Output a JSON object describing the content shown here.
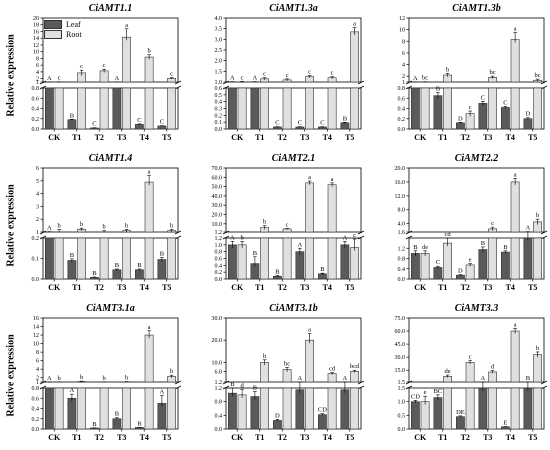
{
  "colors": {
    "leaf": "#5a5a5a",
    "root": "#e0e0e0"
  },
  "legend": [
    {
      "name": "Leaf",
      "color": "#5a5a5a"
    },
    {
      "name": "Root",
      "color": "#e0e0e0"
    }
  ],
  "ylabel": "Relative expression",
  "categories": [
    "CK",
    "T1",
    "T2",
    "T3",
    "T4",
    "T5"
  ],
  "chart_data": [
    {
      "type": "bar",
      "title": "CiAMT1.1",
      "ylabel": "Relative expression",
      "categories": [
        "CK",
        "T1",
        "T2",
        "T3",
        "T4",
        "T5"
      ],
      "upper_ticks": [
        1,
        2,
        4,
        6,
        8,
        10,
        12,
        14,
        16,
        18,
        20
      ],
      "upper_ylim": [
        1,
        20
      ],
      "lower_ticks": [
        0.0,
        0.2,
        0.4,
        0.6,
        0.8
      ],
      "lower_ylim": [
        0,
        0.8
      ],
      "series": [
        {
          "name": "Leaf",
          "values": [
            1.0,
            0.18,
            0.02,
            1.0,
            0.09,
            0.06
          ],
          "errors": [
            0.05,
            0.01,
            0.005,
            0.05,
            0.01,
            0.005
          ],
          "letters": [
            "A",
            "B",
            "C",
            "A",
            "C",
            "C"
          ]
        },
        {
          "name": "Root",
          "values": [
            1.0,
            3.7,
            4.3,
            14.3,
            8.4,
            2.1
          ],
          "errors": [
            0.08,
            0.8,
            0.5,
            2.5,
            0.7,
            0.2
          ],
          "letters": [
            "c",
            "c",
            "c",
            "a",
            "b",
            "c"
          ]
        }
      ]
    },
    {
      "type": "bar",
      "title": "CiAMT1.3a",
      "ylabel": "",
      "categories": [
        "CK",
        "T1",
        "T2",
        "T3",
        "T4",
        "T5"
      ],
      "upper_ticks": [
        1.0,
        1.5,
        2.0,
        2.5,
        3.0,
        3.5,
        4.0
      ],
      "upper_ylim": [
        1.0,
        4.0
      ],
      "lower_ticks": [
        0.0,
        0.1,
        0.2,
        0.3,
        0.4,
        0.5,
        0.6
      ],
      "lower_ylim": [
        0,
        0.6
      ],
      "series": [
        {
          "name": "Leaf",
          "values": [
            1.0,
            1.0,
            0.03,
            0.03,
            0.03,
            0.09
          ],
          "errors": [
            0.02,
            0.02,
            0.004,
            0.004,
            0.004,
            0.008
          ],
          "letters": [
            "A",
            "A",
            "C",
            "C",
            "C",
            "B"
          ]
        },
        {
          "name": "Root",
          "values": [
            1.0,
            1.15,
            1.1,
            1.25,
            1.2,
            3.35
          ],
          "errors": [
            0.03,
            0.05,
            0.05,
            0.05,
            0.05,
            0.2
          ],
          "letters": [
            "c",
            "c",
            "c",
            "c",
            "c",
            "a"
          ]
        }
      ]
    },
    {
      "type": "bar",
      "title": "CiAMT1.3b",
      "ylabel": "",
      "categories": [
        "CK",
        "T1",
        "T2",
        "T3",
        "T4",
        "T5"
      ],
      "upper_ticks": [
        1.0,
        2.0,
        4.0,
        6.0,
        8.0,
        10.0,
        12.0
      ],
      "upper_ylim": [
        1.0,
        12.0
      ],
      "lower_ticks": [
        0.0,
        0.2,
        0.4,
        0.6,
        0.8
      ],
      "lower_ylim": [
        0,
        0.8
      ],
      "series": [
        {
          "name": "Leaf",
          "values": [
            1.0,
            0.65,
            0.12,
            0.5,
            0.42,
            0.2
          ],
          "errors": [
            0.03,
            0.06,
            0.01,
            0.04,
            0.02,
            0.02
          ],
          "letters": [
            "A",
            "B",
            "D",
            "C",
            "C",
            "D"
          ]
        },
        {
          "name": "Root",
          "values": [
            1.0,
            2.2,
            0.3,
            1.8,
            8.3,
            1.3
          ],
          "errors": [
            0.05,
            0.3,
            0.05,
            0.2,
            1.2,
            0.2
          ],
          "letters": [
            "bc",
            "b",
            "c",
            "bc",
            "a",
            "bc"
          ]
        }
      ]
    },
    {
      "type": "bar",
      "title": "CiAMT1.4",
      "ylabel": "Relative expression",
      "categories": [
        "CK",
        "T1",
        "T2",
        "T3",
        "T4",
        "T5"
      ],
      "upper_ticks": [
        1.0,
        2.0,
        3.0,
        4.0,
        5.0,
        6.0
      ],
      "upper_ylim": [
        1.0,
        6.0
      ],
      "lower_ticks": [
        0.0,
        0.1,
        0.2
      ],
      "lower_ylim": [
        0,
        0.2
      ],
      "series": [
        {
          "name": "Leaf",
          "values": [
            1.0,
            0.09,
            0.008,
            0.045,
            0.045,
            0.095
          ],
          "errors": [
            0.03,
            0.008,
            0.002,
            0.004,
            0.004,
            0.01
          ],
          "letters": [
            "A",
            "B",
            "B",
            "B",
            "B",
            "B"
          ]
        },
        {
          "name": "Root",
          "values": [
            1.0,
            1.2,
            1.0,
            1.1,
            4.9,
            1.1
          ],
          "errors": [
            0.2,
            0.1,
            0.1,
            0.1,
            0.5,
            0.1
          ],
          "letters": [
            "b",
            "b",
            "b",
            "b",
            "a",
            "b"
          ]
        }
      ]
    },
    {
      "type": "bar",
      "title": "CiAMT2.1",
      "ylabel": "",
      "categories": [
        "CK",
        "T1",
        "T2",
        "T3",
        "T4",
        "T5"
      ],
      "upper_ticks": [
        1.2,
        10.0,
        20.0,
        30.0,
        40.0,
        50.0,
        60.0,
        70.0
      ],
      "upper_ylim": [
        1.2,
        70.0
      ],
      "lower_ticks": [
        0.0,
        0.2,
        0.4,
        0.6,
        0.8,
        1.0,
        1.2
      ],
      "lower_ylim": [
        0,
        1.2
      ],
      "series": [
        {
          "name": "Leaf",
          "values": [
            1.0,
            0.45,
            0.08,
            0.8,
            0.15,
            1.0
          ],
          "errors": [
            0.1,
            0.2,
            0.02,
            0.1,
            0.02,
            0.1
          ],
          "letters": [
            "A",
            "B",
            "B",
            "A",
            "B",
            "A"
          ]
        },
        {
          "name": "Root",
          "values": [
            1.0,
            6.0,
            4.5,
            54.0,
            52.0,
            0.92
          ],
          "errors": [
            0.1,
            2.0,
            0.5,
            2.0,
            2.0,
            0.25
          ],
          "letters": [
            "b",
            "b",
            "c",
            "a",
            "a",
            "c"
          ]
        }
      ]
    },
    {
      "type": "bar",
      "title": "CiAMT2.2",
      "ylabel": "",
      "categories": [
        "CK",
        "T1",
        "T2",
        "T3",
        "T4",
        "T5"
      ],
      "upper_ticks": [
        1.6,
        4.0,
        8.0,
        12.0,
        16.0,
        20.0
      ],
      "upper_ylim": [
        1.6,
        20.0
      ],
      "lower_ticks": [
        0.0,
        0.4,
        0.8,
        1.2
      ],
      "lower_ylim": [
        0,
        1.6
      ],
      "series": [
        {
          "name": "Leaf",
          "values": [
            1.0,
            0.45,
            0.15,
            1.15,
            1.05,
            1.6
          ],
          "errors": [
            0.1,
            0.05,
            0.02,
            0.1,
            0.05,
            0.1
          ],
          "letters": [
            "B",
            "C",
            "D",
            "B",
            "B",
            "A"
          ]
        },
        {
          "name": "Root",
          "values": [
            1.0,
            1.4,
            0.55,
            2.5,
            16.0,
            4.5
          ],
          "errors": [
            0.1,
            0.2,
            0.05,
            0.5,
            1.0,
            0.8
          ],
          "letters": [
            "de",
            "cd",
            "e",
            "c",
            "a",
            "b"
          ]
        }
      ]
    },
    {
      "type": "bar",
      "title": "CiAMT3.1a",
      "ylabel": "Relative expression",
      "categories": [
        "CK",
        "T1",
        "T2",
        "T3",
        "T4",
        "T5"
      ],
      "upper_ticks": [
        1.0,
        2.0,
        4.0,
        6.0,
        8.0,
        10.0,
        12.0,
        14.0,
        16.0
      ],
      "upper_ylim": [
        1.0,
        16.0
      ],
      "lower_ticks": [
        0.0,
        0.2,
        0.4,
        0.6,
        0.8
      ],
      "lower_ylim": [
        0,
        0.8
      ],
      "series": [
        {
          "name": "Leaf",
          "values": [
            1.0,
            0.6,
            0.02,
            0.2,
            0.03,
            0.5
          ],
          "errors": [
            0.03,
            0.08,
            0.003,
            0.02,
            0.003,
            0.15
          ],
          "letters": [
            "A",
            "A",
            "B",
            "B",
            "B",
            "A"
          ]
        },
        {
          "name": "Root",
          "values": [
            1.0,
            1.1,
            1.0,
            1.05,
            12.0,
            2.3
          ],
          "errors": [
            0.05,
            0.1,
            0.05,
            0.05,
            1.0,
            0.3
          ],
          "letters": [
            "b",
            "b",
            "b",
            "b",
            "a",
            "b"
          ]
        }
      ]
    },
    {
      "type": "bar",
      "title": "CiAMT3.1b",
      "ylabel": "",
      "categories": [
        "CK",
        "T1",
        "T2",
        "T3",
        "T4",
        "T5"
      ],
      "upper_ticks": [
        1.2,
        6.0,
        10.0,
        20.0,
        30.0
      ],
      "upper_ylim": [
        1.2,
        30.0
      ],
      "lower_ticks": [
        0.0,
        0.4,
        0.8,
        1.2
      ],
      "lower_ylim": [
        0,
        1.2
      ],
      "series": [
        {
          "name": "Leaf",
          "values": [
            1.05,
            0.95,
            0.25,
            1.15,
            0.42,
            1.15
          ],
          "errors": [
            0.15,
            0.15,
            0.03,
            0.1,
            0.03,
            0.1
          ],
          "letters": [
            "B",
            "B",
            "D",
            "A",
            "CD",
            "A"
          ]
        },
        {
          "name": "Root",
          "values": [
            1.0,
            10.0,
            6.8,
            20.0,
            5.0,
            6.0
          ],
          "errors": [
            0.15,
            1.2,
            1.0,
            3.0,
            0.5,
            0.5
          ],
          "letters": [
            "d",
            "b",
            "bc",
            "a",
            "cd",
            "bcd"
          ]
        }
      ]
    },
    {
      "type": "bar",
      "title": "CiAMT3.3",
      "ylabel": "",
      "categories": [
        "CK",
        "T1",
        "T2",
        "T3",
        "T4",
        "T5"
      ],
      "upper_ticks": [
        1.5,
        15.0,
        30.0,
        45.0,
        60.0,
        75.0
      ],
      "upper_ylim": [
        1.5,
        75.0
      ],
      "lower_ticks": [
        0.0,
        0.5,
        1.0,
        1.5
      ],
      "lower_ylim": [
        0,
        1.5
      ],
      "series": [
        {
          "name": "Leaf",
          "values": [
            1.0,
            1.15,
            0.45,
            1.5,
            0.08,
            1.5
          ],
          "errors": [
            0.05,
            0.1,
            0.03,
            0.1,
            0.01,
            0.1
          ],
          "letters": [
            "CD",
            "BC",
            "DE",
            "A",
            "E",
            "B"
          ]
        },
        {
          "name": "Root",
          "values": [
            1.0,
            8.0,
            24.0,
            13.0,
            60.0,
            33.0
          ],
          "errors": [
            0.2,
            1.5,
            2.0,
            1.5,
            3.0,
            3.0
          ],
          "letters": [
            "e",
            "de",
            "c",
            "d",
            "a",
            "b"
          ]
        }
      ]
    }
  ]
}
